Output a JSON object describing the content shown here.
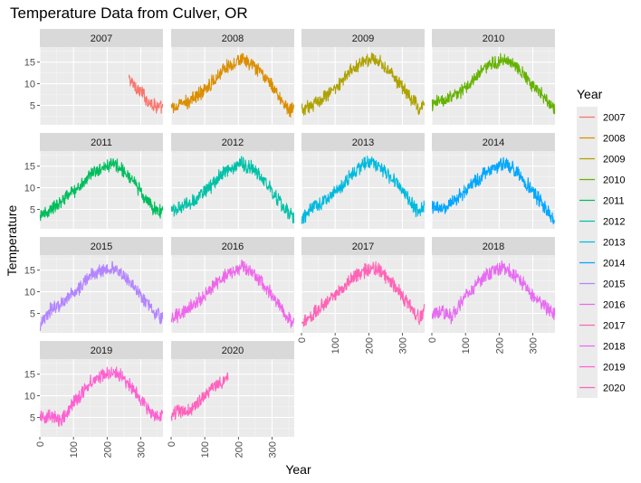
{
  "chart_data": {
    "type": "line",
    "title": "Temperature Data from Culver, OR",
    "xlabel": "Year",
    "ylabel": "Temperature",
    "xlim": [
      0,
      366
    ],
    "ylim": [
      0.5,
      18.5
    ],
    "x_ticks": [
      0,
      100,
      200,
      300
    ],
    "y_ticks": [
      5,
      10,
      15
    ],
    "facet_by": "Year",
    "facet_columns": 4,
    "grid": true,
    "legend": {
      "title": "Year",
      "position": "right"
    },
    "series": [
      {
        "name": "2007",
        "color": "#F8766D",
        "x": [
          265,
          275,
          285,
          295,
          305,
          315,
          325,
          335,
          345,
          355,
          365
        ],
        "y": [
          11.2,
          10.1,
          9.4,
          8.3,
          7.9,
          6.6,
          5.9,
          5.3,
          4.9,
          4.6,
          4.1
        ]
      },
      {
        "name": "2008",
        "color": "#DB8E00",
        "x": [
          1,
          30,
          60,
          90,
          120,
          150,
          180,
          210,
          240,
          270,
          300,
          330,
          350,
          365
        ],
        "y": [
          4.2,
          5.2,
          6.2,
          8.1,
          10.2,
          13.1,
          14.6,
          15.6,
          14.2,
          12.2,
          9.6,
          6.1,
          3.9,
          4.6
        ]
      },
      {
        "name": "2009",
        "color": "#AEA200",
        "x": [
          1,
          30,
          60,
          90,
          120,
          150,
          180,
          210,
          240,
          270,
          300,
          330,
          350,
          365
        ],
        "y": [
          3.6,
          5.1,
          6.6,
          8.6,
          10.6,
          13.1,
          15.1,
          16.1,
          14.6,
          12.1,
          9.1,
          6.1,
          4.2,
          4.6
        ]
      },
      {
        "name": "2010",
        "color": "#64B200",
        "x": [
          1,
          30,
          60,
          90,
          120,
          150,
          180,
          210,
          240,
          270,
          300,
          330,
          350,
          365
        ],
        "y": [
          5.1,
          6.1,
          7.1,
          8.6,
          10.6,
          13.1,
          14.6,
          15.6,
          15.1,
          12.6,
          9.6,
          7.1,
          5.1,
          3.6
        ]
      },
      {
        "name": "2011",
        "color": "#00BD5C",
        "x": [
          1,
          30,
          60,
          90,
          120,
          150,
          180,
          210,
          240,
          270,
          300,
          330,
          350,
          365
        ],
        "y": [
          3.1,
          5.1,
          6.6,
          8.6,
          10.6,
          13.1,
          14.6,
          15.6,
          14.6,
          12.1,
          9.1,
          6.1,
          4.1,
          5.1
        ]
      },
      {
        "name": "2012",
        "color": "#00C1A7",
        "x": [
          1,
          30,
          60,
          90,
          120,
          150,
          180,
          210,
          240,
          270,
          300,
          330,
          350,
          365
        ],
        "y": [
          4.6,
          5.6,
          6.6,
          8.6,
          10.6,
          13.1,
          14.6,
          15.6,
          14.6,
          12.1,
          9.1,
          6.1,
          4.1,
          3.1
        ]
      },
      {
        "name": "2013",
        "color": "#00BADE",
        "x": [
          1,
          30,
          60,
          90,
          120,
          150,
          180,
          210,
          240,
          270,
          300,
          330,
          350,
          365
        ],
        "y": [
          2.6,
          5.1,
          6.6,
          8.6,
          10.6,
          13.1,
          15.1,
          16.1,
          14.1,
          12.1,
          9.1,
          6.1,
          4.1,
          5.6
        ]
      },
      {
        "name": "2014",
        "color": "#00A6FF",
        "x": [
          1,
          30,
          60,
          90,
          120,
          150,
          180,
          210,
          240,
          270,
          300,
          330,
          350,
          365
        ],
        "y": [
          5.6,
          4.6,
          6.6,
          8.6,
          10.6,
          13.1,
          14.6,
          15.6,
          14.6,
          12.1,
          9.1,
          6.1,
          4.1,
          1.6
        ]
      },
      {
        "name": "2015",
        "color": "#B385FF",
        "x": [
          1,
          30,
          60,
          90,
          120,
          150,
          180,
          210,
          240,
          270,
          300,
          330,
          350,
          365
        ],
        "y": [
          2.1,
          5.6,
          7.1,
          9.1,
          11.1,
          13.6,
          15.1,
          15.6,
          14.1,
          12.1,
          9.1,
          6.1,
          4.6,
          4.1
        ]
      },
      {
        "name": "2016",
        "color": "#EF67EB",
        "x": [
          1,
          30,
          60,
          90,
          120,
          150,
          180,
          210,
          240,
          270,
          300,
          330,
          345,
          365
        ],
        "y": [
          3.6,
          5.1,
          6.6,
          8.6,
          10.6,
          13.1,
          14.6,
          15.6,
          14.6,
          12.1,
          9.1,
          6.1,
          3.6,
          3.6
        ]
      },
      {
        "name": "2017",
        "color": "#FF63B6",
        "x": [
          1,
          30,
          60,
          90,
          120,
          150,
          180,
          210,
          240,
          270,
          300,
          330,
          350,
          365
        ],
        "y": [
          3.1,
          4.6,
          6.6,
          8.6,
          10.6,
          13.1,
          14.6,
          15.6,
          14.6,
          12.1,
          9.1,
          6.1,
          4.1,
          5.6
        ]
      },
      {
        "name": "2018",
        "color": "#E76BF3",
        "x": [
          1,
          30,
          60,
          90,
          120,
          150,
          180,
          210,
          240,
          270,
          300,
          330,
          350,
          365
        ],
        "y": [
          4.6,
          5.6,
          4.1,
          8.1,
          10.6,
          13.1,
          14.6,
          15.6,
          14.6,
          12.1,
          9.1,
          7.1,
          5.6,
          5.1
        ]
      },
      {
        "name": "2019",
        "color": "#FD61D1",
        "x": [
          1,
          30,
          60,
          90,
          120,
          150,
          180,
          210,
          240,
          270,
          300,
          330,
          350,
          365
        ],
        "y": [
          4.6,
          5.6,
          4.1,
          7.1,
          10.1,
          13.1,
          14.6,
          15.6,
          14.6,
          12.1,
          9.1,
          6.1,
          5.1,
          5.6
        ]
      },
      {
        "name": "2020",
        "color": "#FF62BC",
        "x": [
          1,
          20,
          40,
          60,
          80,
          100,
          120,
          140,
          160,
          170
        ],
        "y": [
          5.1,
          6.6,
          6.1,
          7.1,
          8.6,
          10.1,
          11.6,
          12.6,
          13.6,
          14.1
        ]
      }
    ]
  }
}
